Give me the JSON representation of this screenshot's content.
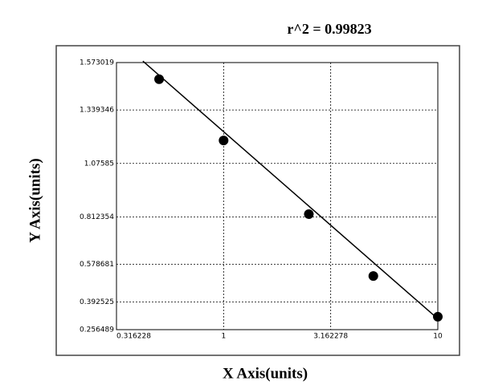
{
  "chart_data": {
    "type": "scatter",
    "title": "r^2 = 0.99823",
    "x_label": "X Axis(units)",
    "y_label": "Y Axis(units)",
    "x_log": true,
    "xlim": [
      0.316228,
      10
    ],
    "xticks": [
      0.316228,
      1,
      3.162278,
      10
    ],
    "ylim": [
      0.256489,
      1.573019
    ],
    "yticks": [
      0.256489,
      0.392525,
      0.578681,
      0.812354,
      1.07585,
      1.339346,
      1.573019
    ],
    "grid": true,
    "color": "#000000",
    "points": {
      "x": [
        0.5,
        1,
        2.5,
        5,
        10
      ],
      "y": [
        1.491,
        1.189,
        0.826,
        0.521,
        0.32
      ]
    },
    "fit": {
      "x": [
        0.42,
        10
      ],
      "y": [
        1.58,
        0.31
      ]
    }
  }
}
